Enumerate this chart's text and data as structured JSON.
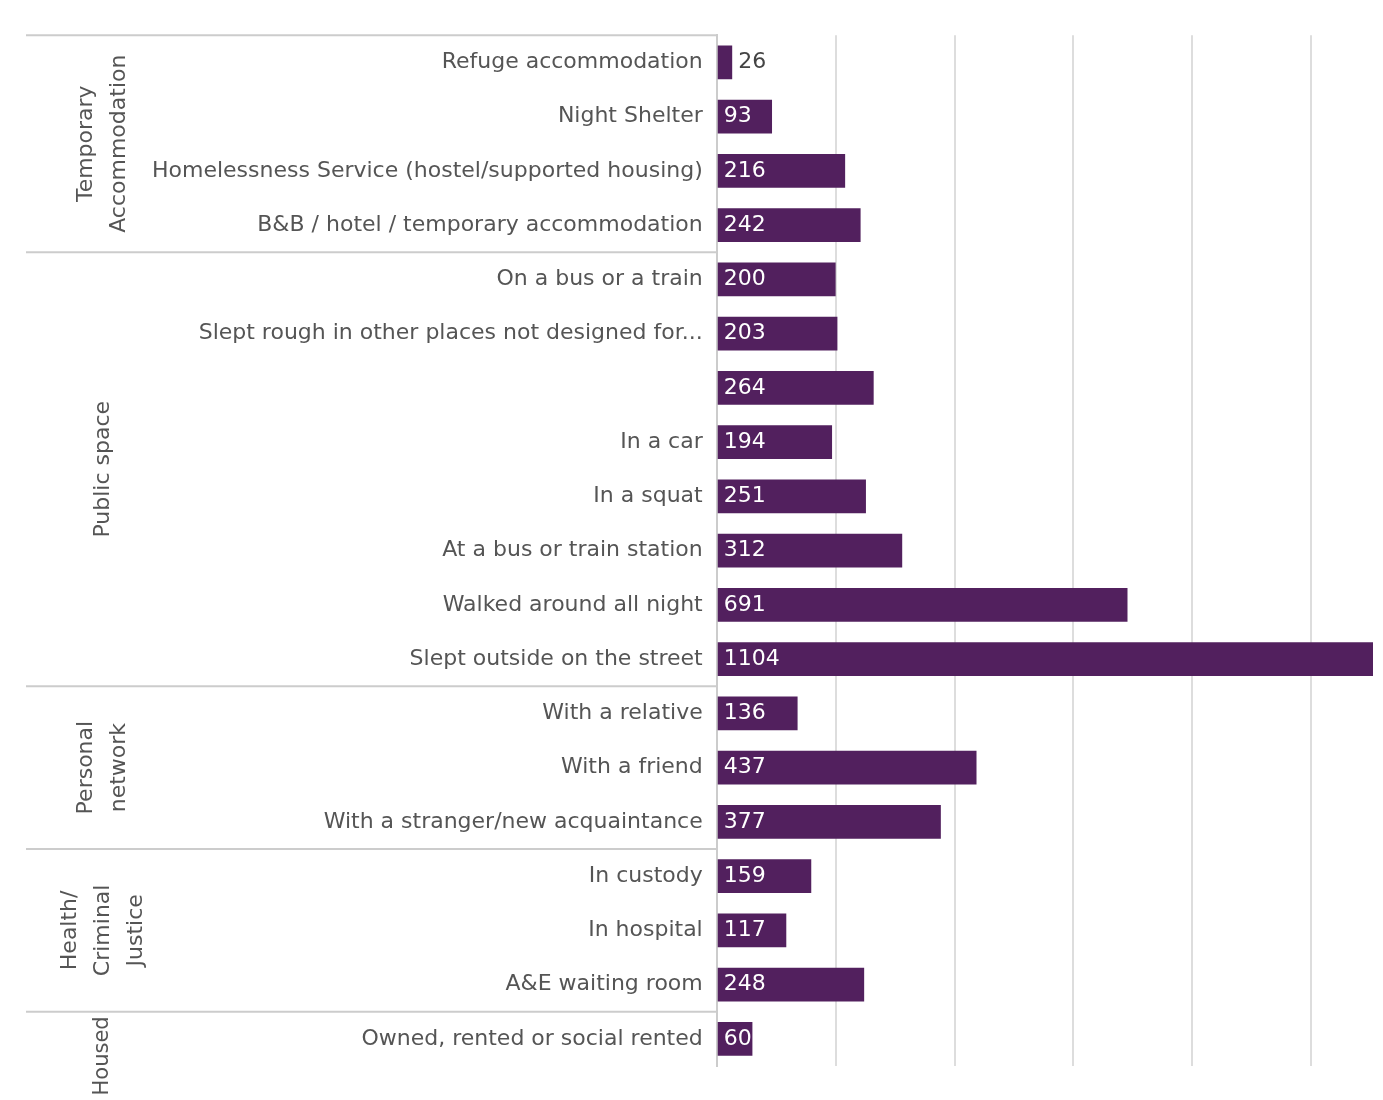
{
  "chart_data": {
    "type": "bar",
    "orientation": "horizontal",
    "categories": [
      "Refuge accommodation",
      "Night Shelter",
      "Homelessness Service (hostel/supported housing)",
      "B&B / hotel / temporary accommodation",
      "On a bus or a train",
      "Slept rough in other places not designed for...",
      null,
      "In a car",
      "In a squat",
      "At a bus or train station",
      "Walked around all night",
      "Slept outside on the street",
      "With a relative",
      "With a friend",
      "With a stranger/new acquaintance",
      "In custody",
      "In hospital",
      "A&E waiting room",
      "Owned, rented or social rented"
    ],
    "values": [
      26,
      93,
      216,
      242,
      200,
      203,
      264,
      194,
      251,
      312,
      691,
      1104,
      136,
      437,
      377,
      159,
      117,
      248,
      60
    ],
    "color": "#52205e",
    "xlim": [
      0,
      1104
    ],
    "xticks": [
      {
        "value": 0,
        "label": null
      },
      {
        "value": 200,
        "label": null
      },
      {
        "value": 400,
        "label": null
      },
      {
        "value": 600,
        "label": null
      },
      {
        "value": 800,
        "label": null
      },
      {
        "value": 1000,
        "label": null
      }
    ],
    "tick_labels": "y",
    "grid": "x",
    "data_labels": true,
    "legend": false,
    "annotations": [
      "Temporary Accommodation",
      "Public space",
      "Personal network",
      "Health/ Criminal Justice",
      "Housed"
    ]
  }
}
